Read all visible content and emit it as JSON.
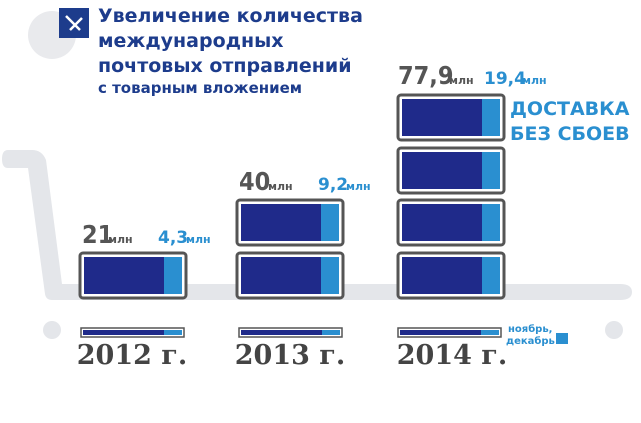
{
  "header": {
    "title": [
      "Увеличение количества",
      "международных",
      "почтовых отправлений"
    ],
    "subtitle": "с товарным вложением"
  },
  "years": [
    {
      "label": "2012 г.",
      "total": "21",
      "total_unit": "млн",
      "mail": "4,3",
      "mail_unit": "млн"
    },
    {
      "label": "2013 г.",
      "total": "40",
      "total_unit": "млн",
      "mail": "9,2",
      "mail_unit": "млн"
    },
    {
      "label": "2014 г.",
      "total": "77,9",
      "total_unit": "млн",
      "mail": "19,4",
      "mail_unit": "млн"
    }
  ],
  "logo": [
    "ДОСТАВКА",
    "БЕЗ СБОЕВ"
  ],
  "note": [
    "ноябрь,",
    "декабрь"
  ]
}
